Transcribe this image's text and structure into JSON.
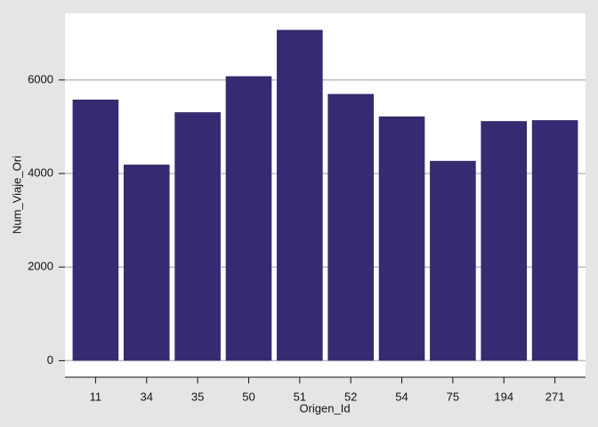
{
  "chart_data": {
    "type": "bar",
    "x_label": "Origen_Id",
    "y_label": "Num_Viaje_Ori",
    "categories": [
      "11",
      "34",
      "35",
      "50",
      "51",
      "52",
      "54",
      "75",
      "194",
      "271"
    ],
    "values": [
      5580,
      4190,
      5310,
      6080,
      7070,
      5700,
      5220,
      4270,
      5120,
      5140
    ],
    "color": "#362a73",
    "ylim": [
      -354,
      7424
    ],
    "yticks": [
      0,
      2000,
      4000,
      6000
    ],
    "grid": true
  }
}
